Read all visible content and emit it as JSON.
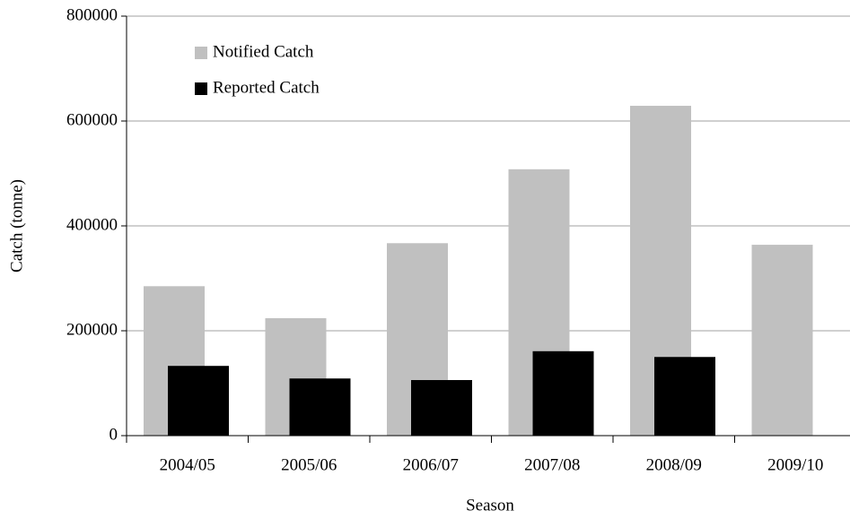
{
  "chart_data": {
    "type": "bar",
    "x_label": "Season",
    "y_label": "Catch (tonne)",
    "categories": [
      "2004/05",
      "2005/06",
      "2006/07",
      "2007/08",
      "2008/09",
      "2009/10"
    ],
    "series": [
      {
        "name": "Notified Catch",
        "color": "#c0c0c0",
        "values": [
          285000,
          224000,
          367000,
          508000,
          629000,
          364000
        ]
      },
      {
        "name": "Reported Catch",
        "color": "#000000",
        "values": [
          133000,
          109000,
          106000,
          161000,
          150000,
          null
        ]
      }
    ],
    "ylim": [
      0,
      800000
    ],
    "yticks": [
      0,
      200000,
      400000,
      600000,
      800000
    ],
    "grid": true,
    "legend": "upper left"
  }
}
